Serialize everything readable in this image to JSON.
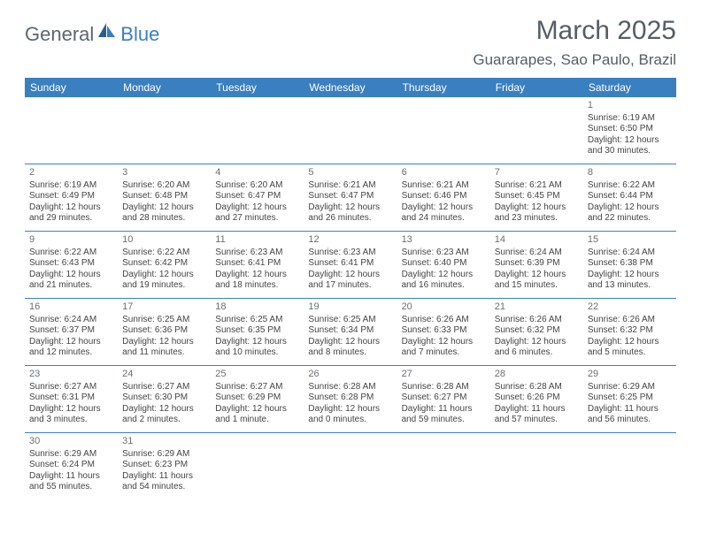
{
  "logo": {
    "part1": "General",
    "part2": "Blue"
  },
  "title": "March 2025",
  "location": "Guararapes, Sao Paulo, Brazil",
  "colors": {
    "header_bg": "#3a7fbf",
    "header_text": "#ffffff",
    "title_text": "#555d66",
    "body_text": "#444444",
    "daynum_text": "#6a6f75",
    "rule": "#3a7fbf",
    "logo_gray": "#5b6670",
    "logo_blue": "#3a7fbf"
  },
  "weekdays": [
    "Sunday",
    "Monday",
    "Tuesday",
    "Wednesday",
    "Thursday",
    "Friday",
    "Saturday"
  ],
  "weeks": [
    [
      null,
      null,
      null,
      null,
      null,
      null,
      {
        "n": "1",
        "sr": "6:19 AM",
        "ss": "6:50 PM",
        "dl": "12 hours and 30 minutes."
      }
    ],
    [
      {
        "n": "2",
        "sr": "6:19 AM",
        "ss": "6:49 PM",
        "dl": "12 hours and 29 minutes."
      },
      {
        "n": "3",
        "sr": "6:20 AM",
        "ss": "6:48 PM",
        "dl": "12 hours and 28 minutes."
      },
      {
        "n": "4",
        "sr": "6:20 AM",
        "ss": "6:47 PM",
        "dl": "12 hours and 27 minutes."
      },
      {
        "n": "5",
        "sr": "6:21 AM",
        "ss": "6:47 PM",
        "dl": "12 hours and 26 minutes."
      },
      {
        "n": "6",
        "sr": "6:21 AM",
        "ss": "6:46 PM",
        "dl": "12 hours and 24 minutes."
      },
      {
        "n": "7",
        "sr": "6:21 AM",
        "ss": "6:45 PM",
        "dl": "12 hours and 23 minutes."
      },
      {
        "n": "8",
        "sr": "6:22 AM",
        "ss": "6:44 PM",
        "dl": "12 hours and 22 minutes."
      }
    ],
    [
      {
        "n": "9",
        "sr": "6:22 AM",
        "ss": "6:43 PM",
        "dl": "12 hours and 21 minutes."
      },
      {
        "n": "10",
        "sr": "6:22 AM",
        "ss": "6:42 PM",
        "dl": "12 hours and 19 minutes."
      },
      {
        "n": "11",
        "sr": "6:23 AM",
        "ss": "6:41 PM",
        "dl": "12 hours and 18 minutes."
      },
      {
        "n": "12",
        "sr": "6:23 AM",
        "ss": "6:41 PM",
        "dl": "12 hours and 17 minutes."
      },
      {
        "n": "13",
        "sr": "6:23 AM",
        "ss": "6:40 PM",
        "dl": "12 hours and 16 minutes."
      },
      {
        "n": "14",
        "sr": "6:24 AM",
        "ss": "6:39 PM",
        "dl": "12 hours and 15 minutes."
      },
      {
        "n": "15",
        "sr": "6:24 AM",
        "ss": "6:38 PM",
        "dl": "12 hours and 13 minutes."
      }
    ],
    [
      {
        "n": "16",
        "sr": "6:24 AM",
        "ss": "6:37 PM",
        "dl": "12 hours and 12 minutes."
      },
      {
        "n": "17",
        "sr": "6:25 AM",
        "ss": "6:36 PM",
        "dl": "12 hours and 11 minutes."
      },
      {
        "n": "18",
        "sr": "6:25 AM",
        "ss": "6:35 PM",
        "dl": "12 hours and 10 minutes."
      },
      {
        "n": "19",
        "sr": "6:25 AM",
        "ss": "6:34 PM",
        "dl": "12 hours and 8 minutes."
      },
      {
        "n": "20",
        "sr": "6:26 AM",
        "ss": "6:33 PM",
        "dl": "12 hours and 7 minutes."
      },
      {
        "n": "21",
        "sr": "6:26 AM",
        "ss": "6:32 PM",
        "dl": "12 hours and 6 minutes."
      },
      {
        "n": "22",
        "sr": "6:26 AM",
        "ss": "6:32 PM",
        "dl": "12 hours and 5 minutes."
      }
    ],
    [
      {
        "n": "23",
        "sr": "6:27 AM",
        "ss": "6:31 PM",
        "dl": "12 hours and 3 minutes."
      },
      {
        "n": "24",
        "sr": "6:27 AM",
        "ss": "6:30 PM",
        "dl": "12 hours and 2 minutes."
      },
      {
        "n": "25",
        "sr": "6:27 AM",
        "ss": "6:29 PM",
        "dl": "12 hours and 1 minute."
      },
      {
        "n": "26",
        "sr": "6:28 AM",
        "ss": "6:28 PM",
        "dl": "12 hours and 0 minutes."
      },
      {
        "n": "27",
        "sr": "6:28 AM",
        "ss": "6:27 PM",
        "dl": "11 hours and 59 minutes."
      },
      {
        "n": "28",
        "sr": "6:28 AM",
        "ss": "6:26 PM",
        "dl": "11 hours and 57 minutes."
      },
      {
        "n": "29",
        "sr": "6:29 AM",
        "ss": "6:25 PM",
        "dl": "11 hours and 56 minutes."
      }
    ],
    [
      {
        "n": "30",
        "sr": "6:29 AM",
        "ss": "6:24 PM",
        "dl": "11 hours and 55 minutes."
      },
      {
        "n": "31",
        "sr": "6:29 AM",
        "ss": "6:23 PM",
        "dl": "11 hours and 54 minutes."
      },
      null,
      null,
      null,
      null,
      null
    ]
  ],
  "labels": {
    "sunrise": "Sunrise: ",
    "sunset": "Sunset: ",
    "daylight": "Daylight: "
  }
}
